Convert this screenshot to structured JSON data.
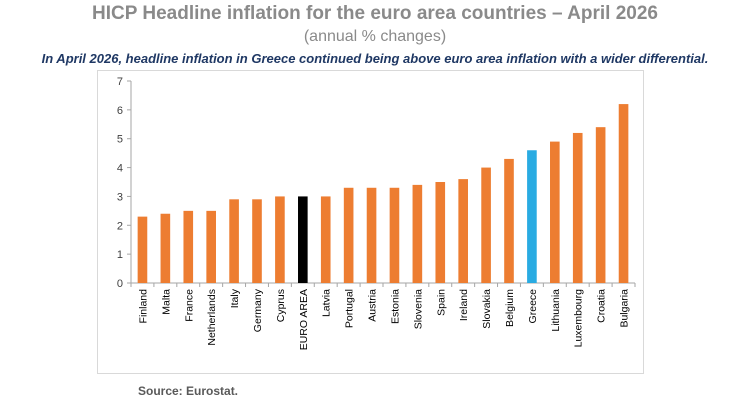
{
  "header": {
    "title": "HICP Headline inflation for the euro area countries – April 2026",
    "subtitle": "(annual % changes)",
    "headline": "In April 2026, headline inflation in Greece continued being above euro area inflation with a wider differential."
  },
  "footer": {
    "source": "Source: Eurostat."
  },
  "colors": {
    "default_bar": "#ed7d31",
    "euro_area_bar": "#000000",
    "greece_bar": "#29abe2",
    "axis": "#a6a6a6",
    "text": "#404040"
  },
  "chart_data": {
    "type": "bar",
    "categories": [
      "Finland",
      "Malta",
      "France",
      "Netherlands",
      "Italy",
      "Germany",
      "Cyprus",
      "EURO AREA",
      "Latvia",
      "Portugal",
      "Austria",
      "Estonia",
      "Slovenia",
      "Spain",
      "Ireland",
      "Slovakia",
      "Belgium",
      "Greece",
      "Lithuania",
      "Luxembourg",
      "Croatia",
      "Bulgaria"
    ],
    "values": [
      2.3,
      2.4,
      2.5,
      2.5,
      2.9,
      2.9,
      3.0,
      3.0,
      3.0,
      3.3,
      3.3,
      3.3,
      3.4,
      3.5,
      3.6,
      4.0,
      4.3,
      4.6,
      4.9,
      5.2,
      5.4,
      6.2
    ],
    "highlight": {
      "EURO AREA": "euro_area_bar",
      "Greece": "greece_bar"
    },
    "ylim": [
      0,
      7
    ],
    "yticks": [
      0,
      1,
      2,
      3,
      4,
      5,
      6,
      7
    ],
    "grid": false,
    "legend": false
  }
}
